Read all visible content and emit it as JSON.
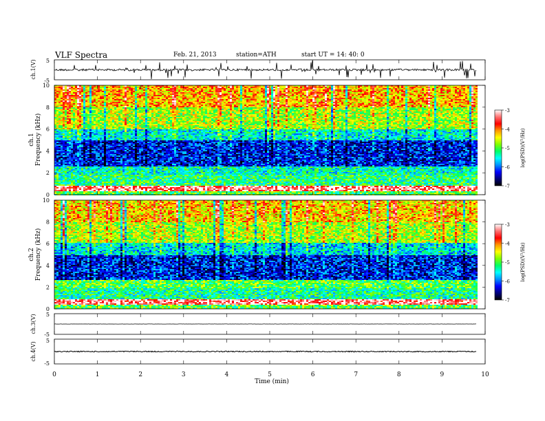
{
  "header": {
    "title": "VLF  Spectra",
    "date": "Feb. 21, 2013",
    "station": "station=ATH",
    "start": "start  UT  =   14: 40: 0"
  },
  "chart_data": [
    {
      "type": "line",
      "panel": "ch1-waveform",
      "ylabel": "ch.1(V)",
      "ylim": [
        -5,
        5
      ],
      "yticks": [
        "5",
        "-5"
      ],
      "baseline": 0,
      "noise_amplitude": 0.5
    },
    {
      "type": "heatmap",
      "panel": "ch1-spectrogram",
      "ylabel_channel": "ch.1",
      "ylabel": "Frequency  (kHz)",
      "ylim": [
        0,
        10
      ],
      "yticks": [
        "0",
        "2",
        "4",
        "6",
        "8",
        "10"
      ],
      "colorbar": {
        "label": "log(PSD)(V²/Hz)",
        "range": [
          -7,
          -3
        ],
        "ticks": [
          "-3",
          "-4",
          "-5",
          "-6",
          "-7"
        ]
      },
      "bands_khz": [
        {
          "from": 0,
          "to": 0.35,
          "value": -5.0
        },
        {
          "from": 0.35,
          "to": 0.9,
          "value": -3.3
        },
        {
          "from": 0.9,
          "to": 1.9,
          "value": -5.2
        },
        {
          "from": 1.9,
          "to": 2.6,
          "value": -5.4
        },
        {
          "from": 2.6,
          "to": 5.0,
          "value": -6.3
        },
        {
          "from": 5.0,
          "to": 6.0,
          "value": -5.5
        },
        {
          "from": 6.0,
          "to": 8.0,
          "value": -4.7
        },
        {
          "from": 8.0,
          "to": 10.0,
          "value": -4.2
        }
      ]
    },
    {
      "type": "heatmap",
      "panel": "ch2-spectrogram",
      "ylabel_channel": "ch.2",
      "ylabel": "Frequency  (kHz)",
      "ylim": [
        0,
        10
      ],
      "yticks": [
        "0",
        "2",
        "4",
        "6",
        "8",
        "10"
      ],
      "colorbar": {
        "label": "log(PSD)(V²/Hz)",
        "range": [
          -7,
          -3
        ],
        "ticks": [
          "-3",
          "-4",
          "-5",
          "-6",
          "-7"
        ]
      },
      "bands_khz": [
        {
          "from": 0,
          "to": 0.4,
          "value": -5.0
        },
        {
          "from": 0.4,
          "to": 0.9,
          "value": -3.3
        },
        {
          "from": 0.9,
          "to": 2.0,
          "value": -5.3
        },
        {
          "from": 2.0,
          "to": 2.7,
          "value": -5.0
        },
        {
          "from": 2.7,
          "to": 5.0,
          "value": -6.3
        },
        {
          "from": 5.0,
          "to": 6.2,
          "value": -5.6
        },
        {
          "from": 6.2,
          "to": 8.0,
          "value": -4.7
        },
        {
          "from": 8.0,
          "to": 10.0,
          "value": -4.3
        }
      ]
    },
    {
      "type": "line",
      "panel": "ch3-waveform",
      "ylabel": "ch.3(V)",
      "ylim": [
        -5,
        5
      ],
      "yticks": [
        "5",
        "-5"
      ],
      "baseline": 0,
      "noise_amplitude": 0.05
    },
    {
      "type": "line",
      "panel": "ch4-waveform",
      "ylabel": "ch.4(V)",
      "ylim": [
        -5,
        5
      ],
      "yticks": [
        "5",
        "-5"
      ],
      "baseline": 0,
      "noise_amplitude": 0.2
    }
  ],
  "x_axis": {
    "xlabel": "Time  (min)",
    "xlim": [
      0,
      10
    ],
    "data_end": 9.8,
    "ticks": [
      "0",
      "1",
      "2",
      "3",
      "4",
      "5",
      "6",
      "7",
      "8",
      "9",
      "10"
    ]
  },
  "colors": {
    "scale": [
      "#000000",
      "#00007a",
      "#0000ff",
      "#0090ff",
      "#00ffff",
      "#00ff66",
      "#7fff00",
      "#ffff00",
      "#ff9900",
      "#ff0000",
      "#ff7070",
      "#ffffff"
    ]
  }
}
